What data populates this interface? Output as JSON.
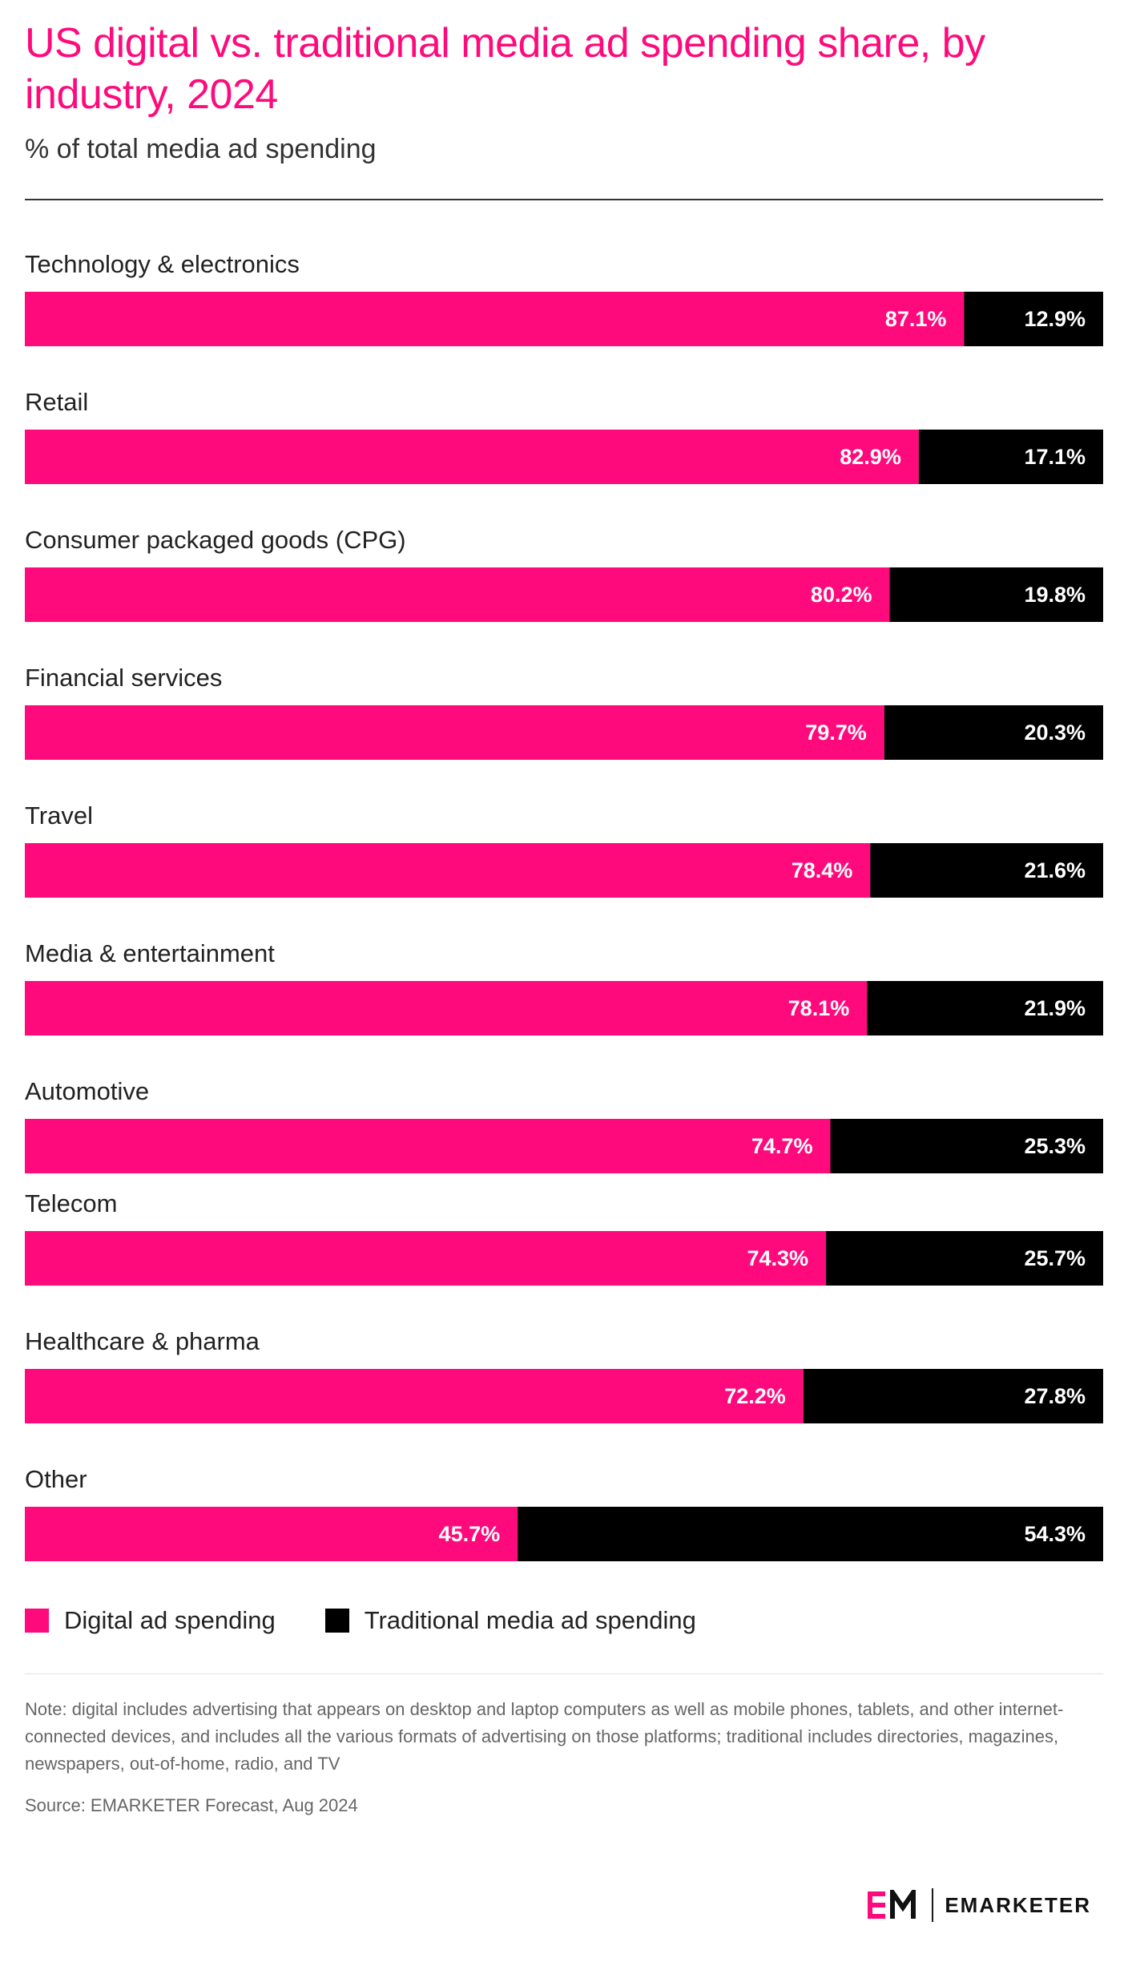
{
  "header": {
    "title": "US digital vs. traditional media ad spending share, by industry, 2024",
    "subtitle": "% of total media ad spending"
  },
  "colors": {
    "digital": "#ff0a7d",
    "traditional": "#000000"
  },
  "chart_data": {
    "type": "bar",
    "orientation": "horizontal",
    "stacked": true,
    "percent_stacked": true,
    "categories": [
      "Technology & electronics",
      "Retail",
      "Consumer packaged goods (CPG)",
      "Financial services",
      "Travel",
      "Media & entertainment",
      "Automotive",
      "Telecom",
      "Healthcare & pharma",
      "Other"
    ],
    "series": [
      {
        "name": "Digital ad spending",
        "values": [
          87.1,
          82.9,
          80.2,
          79.7,
          78.4,
          78.1,
          74.7,
          74.3,
          72.2,
          45.7
        ],
        "labels": [
          "87.1%",
          "82.9%",
          "80.2%",
          "79.7%",
          "78.4%",
          "78.1%",
          "74.7%",
          "74.3%",
          "72.2%",
          "45.7%"
        ]
      },
      {
        "name": "Traditional media ad spending",
        "values": [
          12.9,
          17.1,
          19.8,
          20.3,
          21.6,
          21.9,
          25.3,
          25.7,
          27.8,
          54.3
        ],
        "labels": [
          "12.9%",
          "17.1%",
          "19.8%",
          "20.3%",
          "21.6%",
          "21.9%",
          "25.3%",
          "25.7%",
          "27.8%",
          "54.3%"
        ]
      }
    ],
    "xlim": [
      0,
      100
    ],
    "grid": false,
    "legend_position": "bottom-left"
  },
  "footer": {
    "note": "Note: digital includes advertising that appears on desktop and laptop computers as well as mobile phones, tablets, and other internet-connected devices, and includes all the various formats of advertising on those platforms; traditional includes directories, magazines, newspapers, out-of-home, radio, and TV",
    "source": "Source: EMARKETER Forecast, Aug 2024",
    "brand": "EMARKETER"
  }
}
